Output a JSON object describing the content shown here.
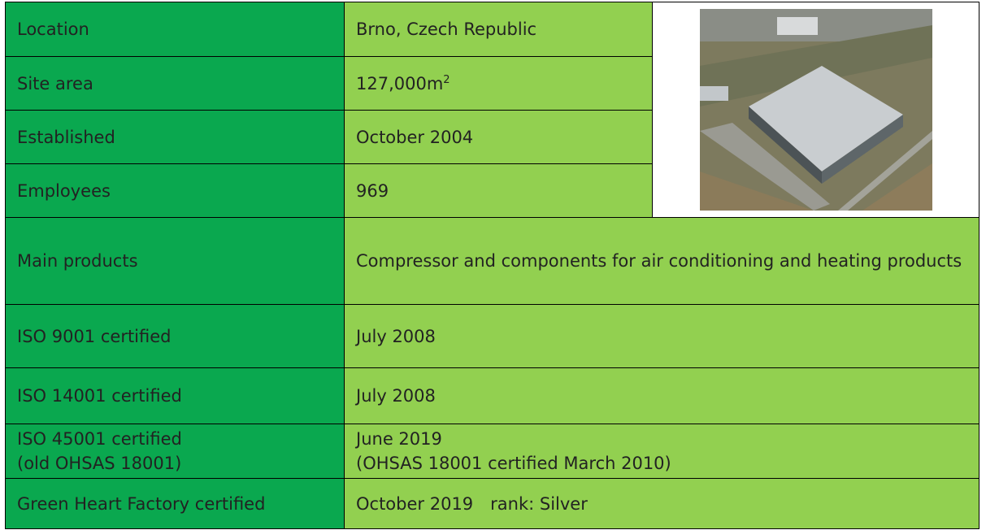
{
  "table": {
    "rows": [
      {
        "label": [
          "Location"
        ],
        "value": [
          "Brno, Czech Republic"
        ]
      },
      {
        "label": [
          "Site area"
        ],
        "value": [
          "127,000m"
        ],
        "superscript": "2"
      },
      {
        "label": [
          "Established"
        ],
        "value": [
          "October 2004"
        ]
      },
      {
        "label": [
          "Employees"
        ],
        "value": [
          "969"
        ]
      },
      {
        "label": [
          "Main products"
        ],
        "value": [
          "Compressor and components for air conditioning and heating products"
        ]
      },
      {
        "label": [
          "ISO 9001 certified"
        ],
        "value": [
          "July 2008"
        ]
      },
      {
        "label": [
          "ISO 14001 certified"
        ],
        "value": [
          "July 2008"
        ]
      },
      {
        "label": [
          "ISO 45001 certified",
          "(old OHSAS 18001)"
        ],
        "value": [
          "June 2019",
          "(OHSAS 18001 certified March 2010)"
        ]
      },
      {
        "label": [
          "Green Heart Factory certified"
        ],
        "value": [
          "October 2019　rank: Silver"
        ]
      }
    ]
  }
}
